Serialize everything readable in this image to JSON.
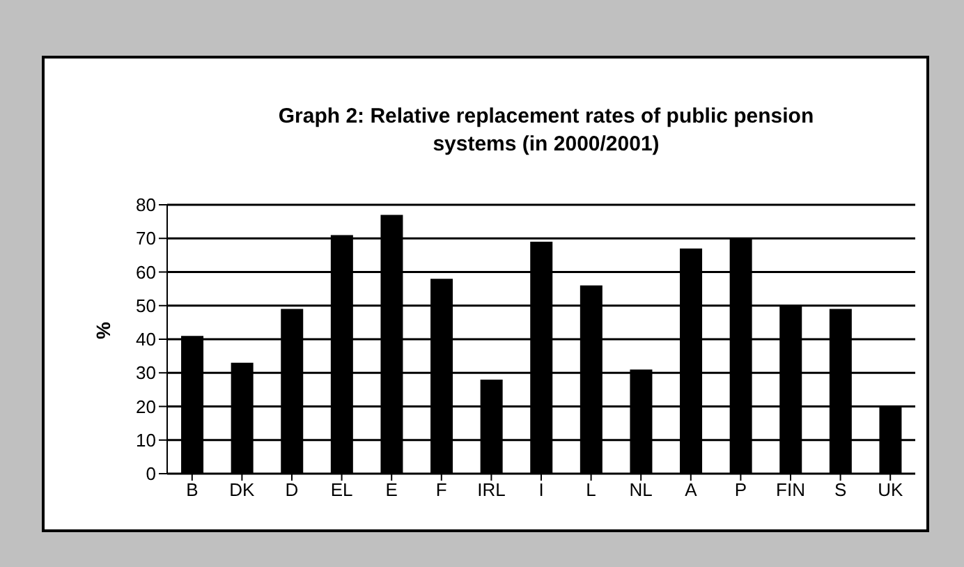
{
  "chart_data": {
    "type": "bar",
    "title": "Graph 2: Relative replacement rates of public pension systems (in 2000/2001)",
    "ylabel": "%",
    "categories": [
      "B",
      "DK",
      "D",
      "EL",
      "E",
      "F",
      "IRL",
      "I",
      "L",
      "NL",
      "A",
      "P",
      "FIN",
      "S",
      "UK"
    ],
    "values": [
      41,
      33,
      49,
      71,
      77,
      58,
      28,
      69,
      56,
      31,
      67,
      70,
      50,
      49,
      20
    ],
    "color": "#000000",
    "ylim": [
      0,
      80
    ],
    "yticks": [
      0,
      10,
      20,
      30,
      40,
      50,
      60,
      70,
      80
    ],
    "grid": "y"
  }
}
